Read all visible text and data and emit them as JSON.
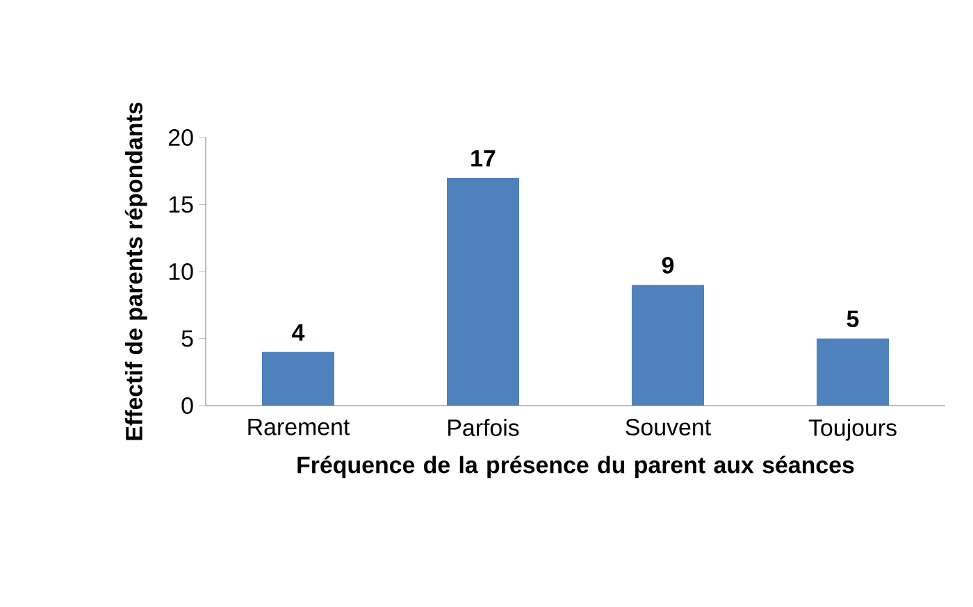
{
  "chart_data": {
    "type": "bar",
    "categories": [
      "Rarement",
      "Parfois",
      "Souvent",
      "Toujours"
    ],
    "values": [
      4,
      17,
      9,
      5
    ],
    "color": "#4f81bd",
    "xlabel": "Fréquence de la présence du parent aux séances",
    "ylabel": "Effectif de parents répondants",
    "ylim": [
      0,
      20
    ],
    "yticks": [
      0,
      5,
      10,
      15,
      20
    ],
    "data_labels": true
  }
}
